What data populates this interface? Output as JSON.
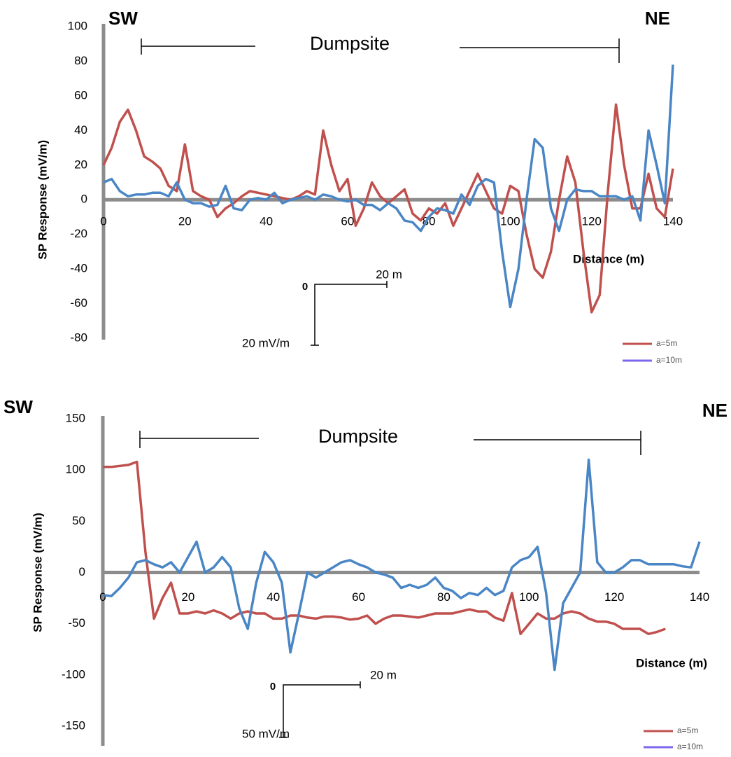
{
  "chart_data": [
    {
      "type": "line",
      "ylabel": "SP Response (mV/m)",
      "xlabel": "Distance (m)",
      "annotations": {
        "left": "SW",
        "right": "NE",
        "region": "Dumpsite",
        "scale_x": "20 m",
        "scale_origin": "0",
        "scale_y": "20 mV/m"
      },
      "xlim": [
        0,
        140
      ],
      "xticks": [
        0,
        20,
        40,
        60,
        80,
        100,
        120,
        140
      ],
      "ylim": [
        -80,
        100
      ],
      "yticks": [
        -80,
        -60,
        -40,
        -20,
        0,
        20,
        40,
        60,
        80,
        100
      ],
      "x": [
        0,
        2,
        4,
        6,
        8,
        10,
        12,
        14,
        16,
        18,
        20,
        22,
        24,
        26,
        28,
        30,
        32,
        34,
        36,
        38,
        40,
        42,
        44,
        46,
        48,
        50,
        52,
        54,
        56,
        58,
        60,
        62,
        64,
        66,
        68,
        70,
        72,
        74,
        76,
        78,
        80,
        82,
        84,
        86,
        88,
        90,
        92,
        94,
        96,
        98,
        100,
        102,
        104,
        106,
        108,
        110,
        112,
        114,
        116,
        118,
        120,
        122,
        124,
        126,
        128,
        130,
        132,
        134,
        136,
        138,
        140
      ],
      "series": [
        {
          "name": "a=5m",
          "color": "#c0504d",
          "legend_color": "#c0504d",
          "values": [
            20,
            30,
            45,
            52,
            40,
            25,
            22,
            18,
            8,
            5,
            32,
            5,
            2,
            0,
            -10,
            -5,
            -2,
            2,
            5,
            4,
            3,
            2,
            1,
            0,
            2,
            5,
            3,
            40,
            20,
            5,
            12,
            -15,
            -5,
            10,
            2,
            -2,
            2,
            6,
            -8,
            -12,
            -5,
            -8,
            -2,
            -15,
            -5,
            5,
            15,
            5,
            -5,
            -8,
            8,
            5,
            -20,
            -40,
            -45,
            -30,
            0,
            25,
            10,
            -30,
            -65,
            -55,
            5,
            55,
            20,
            -5,
            -5,
            15,
            -5,
            -10,
            18
          ]
        },
        {
          "name": "a=10m",
          "color": "#4a86c5",
          "legend_color": "#7b68ee",
          "values": [
            10,
            12,
            5,
            2,
            3,
            3,
            4,
            4,
            2,
            10,
            0,
            -2,
            -2,
            -4,
            -3,
            8,
            -5,
            -6,
            0,
            1,
            0,
            4,
            -2,
            0,
            1,
            2,
            0,
            3,
            2,
            0,
            -1,
            0,
            -3,
            -3,
            -6,
            -2,
            -5,
            -12,
            -13,
            -18,
            -10,
            -5,
            -6,
            -8,
            3,
            -3,
            8,
            12,
            10,
            -30,
            -62,
            -40,
            0,
            35,
            30,
            -5,
            -18,
            0,
            6,
            5,
            5,
            2,
            2,
            2,
            0,
            2,
            -12,
            40,
            20,
            -2,
            78
          ]
        }
      ]
    },
    {
      "type": "line",
      "ylabel": "SP Response (mV/m)",
      "xlabel": "Distance (m)",
      "annotations": {
        "left": "SW",
        "right": "NE",
        "region": "Dumpsite",
        "scale_x": "20 m",
        "scale_origin": "0",
        "scale_y": "50 mV/m"
      },
      "xlim": [
        0,
        140
      ],
      "xticks": [
        0,
        20,
        40,
        60,
        80,
        100,
        120,
        140
      ],
      "ylim": [
        -150,
        150
      ],
      "yticks": [
        -150,
        -100,
        -50,
        0,
        50,
        100,
        150
      ],
      "x": [
        0,
        2,
        4,
        6,
        8,
        10,
        12,
        14,
        16,
        18,
        20,
        22,
        24,
        26,
        28,
        30,
        32,
        34,
        36,
        38,
        40,
        42,
        44,
        46,
        48,
        50,
        52,
        54,
        56,
        58,
        60,
        62,
        64,
        66,
        68,
        70,
        72,
        74,
        76,
        78,
        80,
        82,
        84,
        86,
        88,
        90,
        92,
        94,
        96,
        98,
        100,
        102,
        104,
        106,
        108,
        110,
        112,
        114,
        116,
        118,
        120,
        122,
        124,
        126,
        128,
        130,
        132,
        134,
        136,
        138,
        140
      ],
      "series": [
        {
          "name": "a=5m",
          "color": "#c0504d",
          "legend_color": "#c0504d",
          "values": [
            103,
            103,
            104,
            105,
            108,
            20,
            -45,
            -25,
            -10,
            -40,
            -40,
            -38,
            -40,
            -37,
            -40,
            -45,
            -40,
            -38,
            -40,
            -40,
            -45,
            -45,
            -42,
            -42,
            -44,
            -45,
            -43,
            -43,
            -44,
            -46,
            -45,
            -42,
            -50,
            -45,
            -42,
            -42,
            -43,
            -44,
            -42,
            -40,
            -40,
            -40,
            -38,
            -36,
            -38,
            -38,
            -44,
            -47,
            -20,
            -60,
            -50,
            -40,
            -45,
            -45,
            -40,
            -38,
            -40,
            -45,
            -48,
            -48,
            -50,
            -55,
            -55,
            -55,
            -60,
            -58,
            -55,
            null,
            null,
            null,
            null
          ]
        },
        {
          "name": "a=10m",
          "color": "#4a86c5",
          "legend_color": "#7b68ee",
          "values": [
            -22,
            -23,
            -15,
            -5,
            10,
            12,
            8,
            5,
            10,
            0,
            15,
            30,
            0,
            5,
            15,
            5,
            -35,
            -55,
            -10,
            20,
            10,
            -10,
            -78,
            -40,
            0,
            -5,
            0,
            5,
            10,
            12,
            8,
            5,
            0,
            -2,
            -5,
            -15,
            -12,
            -15,
            -12,
            -5,
            -15,
            -18,
            -25,
            -20,
            -22,
            -15,
            -22,
            -18,
            5,
            12,
            15,
            25,
            -20,
            -95,
            -30,
            -15,
            0,
            110,
            10,
            0,
            0,
            5,
            12,
            12,
            8,
            8,
            8,
            8,
            6,
            5,
            30
          ]
        }
      ]
    }
  ]
}
